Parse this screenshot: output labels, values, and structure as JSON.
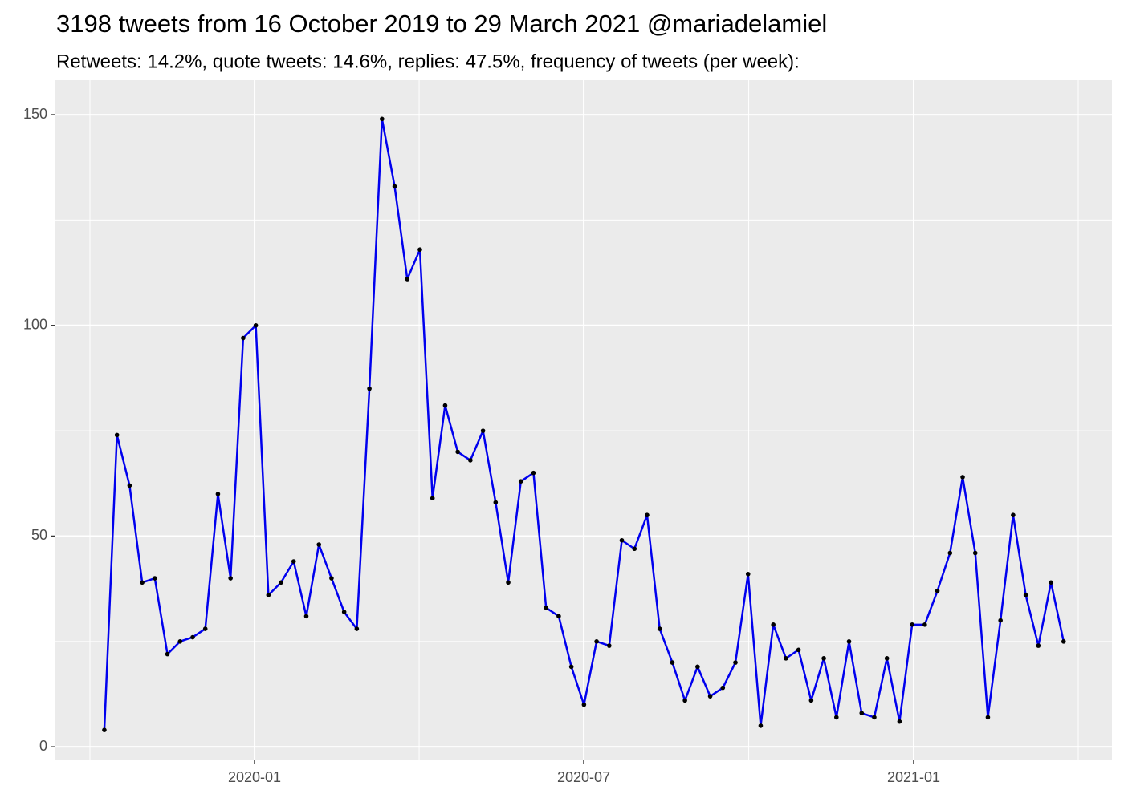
{
  "chart_data": {
    "type": "line",
    "title": "3198 tweets from 16 October 2019 to 29 March 2021 @mariadelamiel",
    "subtitle": "Retweets: 14.2%, quote tweets: 14.6%, replies: 47.5%, frequency of tweets (per week):",
    "categories": [
      null,
      null,
      null,
      null,
      null,
      null,
      null,
      null,
      null,
      null,
      null,
      null,
      null,
      null,
      null,
      null,
      null,
      null,
      null,
      null,
      null,
      null,
      null,
      null,
      null,
      null,
      null,
      null,
      null,
      null,
      null,
      null,
      null,
      null,
      null,
      null,
      null,
      null,
      null,
      null,
      null,
      null,
      null,
      null,
      null,
      null,
      null,
      null,
      null,
      null,
      null,
      null,
      null,
      null,
      null,
      null,
      null,
      null,
      null,
      null,
      null,
      null,
      null,
      null,
      null,
      null,
      null,
      null,
      null,
      null,
      null,
      null,
      null,
      null,
      null,
      null,
      null
    ],
    "values": [
      4,
      74,
      62,
      39,
      40,
      22,
      25,
      26,
      28,
      60,
      40,
      97,
      100,
      36,
      39,
      44,
      31,
      48,
      40,
      32,
      28,
      85,
      149,
      133,
      111,
      118,
      59,
      81,
      70,
      68,
      75,
      58,
      39,
      63,
      65,
      33,
      31,
      19,
      10,
      25,
      24,
      49,
      47,
      55,
      28,
      20,
      11,
      19,
      12,
      14,
      20,
      41,
      5,
      29,
      21,
      23,
      11,
      21,
      7,
      25,
      8,
      7,
      21,
      6,
      29,
      29,
      37,
      46,
      64,
      46,
      7,
      30,
      55,
      36,
      24,
      39,
      25
    ],
    "color": "#0000ee",
    "point_color": "#000000",
    "xlim": [
      -3.94,
      79.83
    ],
    "xticks": [
      {
        "value": 11.9,
        "label": "2020-01"
      },
      {
        "value": 37.98,
        "label": "2020-07"
      },
      {
        "value": 64.12,
        "label": "2021-01"
      }
    ],
    "ylim": [
      -3.2,
      158.2
    ],
    "yticks": [
      0,
      50,
      100,
      150
    ],
    "grid": true,
    "minor_grid": true
  }
}
